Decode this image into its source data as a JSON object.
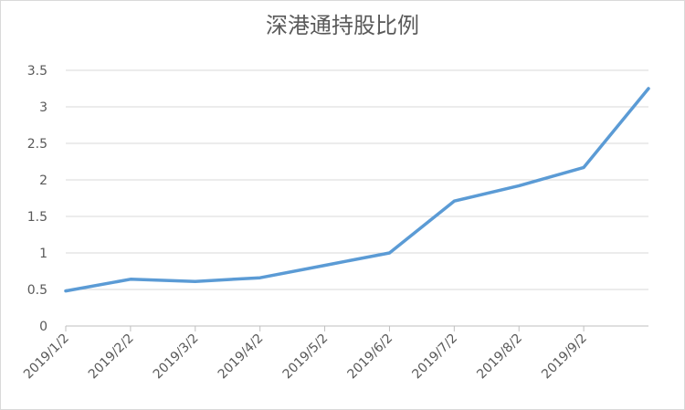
{
  "chart_data": {
    "type": "line",
    "title": "深港通持股比例",
    "categories": [
      "2019/1/2",
      "2019/2/2",
      "2019/3/2",
      "2019/4/2",
      "2019/5/2",
      "2019/6/2",
      "2019/7/2",
      "2019/8/2",
      "2019/9/2",
      null
    ],
    "series": [
      {
        "name": "深港通持股比例",
        "color": "#5b9bd5",
        "values": [
          0.48,
          0.64,
          0.61,
          0.66,
          0.83,
          1.0,
          1.71,
          1.92,
          2.17,
          3.25
        ]
      }
    ],
    "ylim": [
      0,
      3.5
    ],
    "yticks": [
      0,
      0.5,
      1,
      1.5,
      2,
      2.5,
      3,
      3.5
    ],
    "grid": true
  }
}
